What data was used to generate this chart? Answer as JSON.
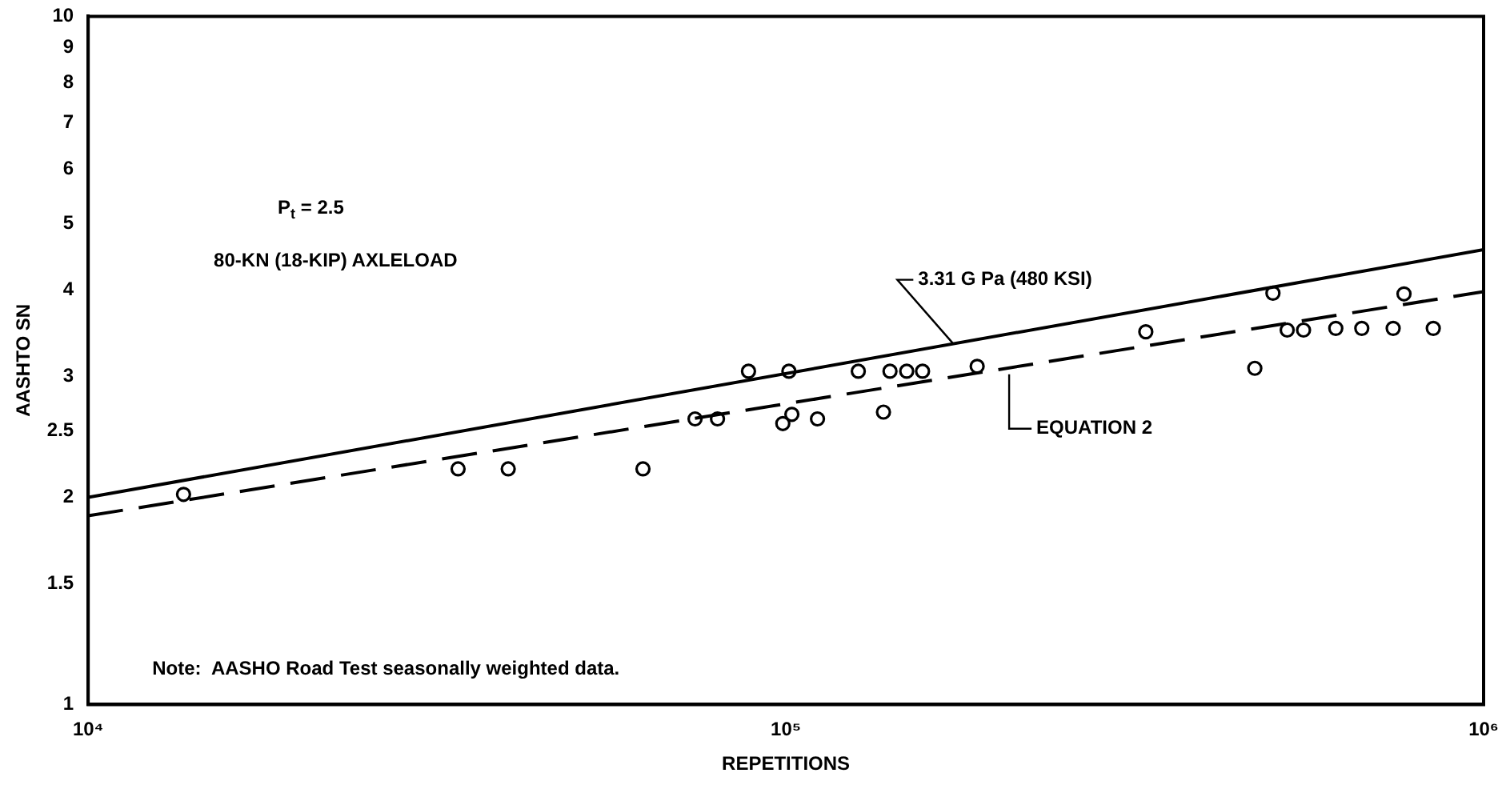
{
  "chart_data": {
    "type": "scatter",
    "xlabel": "REPETITIONS",
    "ylabel": "AASHTO SN",
    "log": "xy",
    "grid": false,
    "legend": false,
    "marker": "circle",
    "xlim": [
      10000,
      1000000
    ],
    "xticks": [
      {
        "value": 10000,
        "label": "10⁴"
      },
      {
        "value": 100000,
        "label": "10⁵"
      },
      {
        "value": 1000000,
        "label": "10⁶"
      }
    ],
    "ylim": [
      1,
      10
    ],
    "yticks": [
      1,
      1.5,
      2,
      2.5,
      3,
      4,
      5,
      6,
      7,
      8,
      9,
      10
    ],
    "annotations": [
      "P$_{t}$ = 2.5",
      "80-KN (18-KIP) AXLELOAD",
      "Note:  AASHO Road Test seasonally weighted data."
    ],
    "series": [
      {
        "color": "#000000",
        "x": [
          13700,
          33900,
          40000,
          62400,
          74100,
          79800,
          88400,
          101000,
          99000,
          102000,
          111000,
          127000,
          138000,
          141000,
          149000,
          157000,
          188000,
          328000,
          470000,
          499000,
          523000,
          552000,
          614000,
          669000,
          742000,
          769000,
          847000
        ],
        "values": [
          2.02,
          2.2,
          2.2,
          2.2,
          2.6,
          2.6,
          3.05,
          3.05,
          2.56,
          2.64,
          2.6,
          3.05,
          2.66,
          3.05,
          3.05,
          3.05,
          3.1,
          3.48,
          3.08,
          3.96,
          3.5,
          3.5,
          3.52,
          3.52,
          3.52,
          3.95,
          3.52
        ]
      },
      {
        "type": "line",
        "name": "3.31 G Pa (480 KSI)",
        "color": "#000000",
        "line_style": "solid",
        "marker": "none",
        "x": [
          10000,
          1000000
        ],
        "values": [
          2.0,
          4.58
        ]
      },
      {
        "type": "line",
        "name": "EQUATION 2",
        "color": "#000000",
        "line_style": "dashed",
        "marker": "none",
        "x": [
          10000,
          1000000
        ],
        "values": [
          1.88,
          3.98
        ]
      }
    ]
  }
}
